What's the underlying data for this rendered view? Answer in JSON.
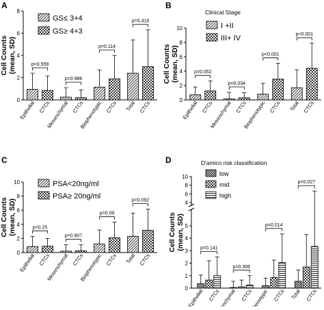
{
  "chart_data": [
    {
      "type": "bar",
      "panel": "A",
      "title": "",
      "xlabel": "",
      "ylabel": "Cell Counts\n(mean, SD)",
      "ylim": [
        0,
        8
      ],
      "yticks": [
        "0",
        "2",
        "4",
        "6",
        "8"
      ],
      "ybreak": false,
      "groups": [
        {
          "labels": [
            "Epithelial",
            "CTCs"
          ],
          "pvalue": "p=0.559"
        },
        {
          "labels": [
            "Mesenchymal",
            "CTCs"
          ],
          "pvalue": "p=0.986"
        },
        {
          "labels": [
            "Biophenotypic",
            "CTCs"
          ],
          "pvalue": "p=0.114"
        },
        {
          "labels": [
            "Total",
            "CTCs"
          ],
          "pvalue": "p=0.416"
        }
      ],
      "series": [
        {
          "name": "GS≤ 3+4",
          "pattern": "hatch",
          "values": [
            0.95,
            0.25,
            1.15,
            2.4
          ],
          "sd": [
            1.45,
            0.85,
            1.55,
            3.0
          ]
        },
        {
          "name": "GS≥ 4+3",
          "pattern": "check",
          "values": [
            0.85,
            0.2,
            1.9,
            3.0
          ],
          "sd": [
            1.3,
            0.7,
            2.1,
            3.3
          ]
        }
      ],
      "legend_title": "",
      "legend": "top-left"
    },
    {
      "type": "bar",
      "panel": "B",
      "title": "",
      "xlabel": "",
      "ylabel": "Cell Counts\n(mean, SD)",
      "ylim": [
        0,
        10
      ],
      "yticks": [
        "0",
        "2",
        "4",
        "6",
        "8",
        "10"
      ],
      "ybreak": false,
      "groups": [
        {
          "labels": [
            "Epithelial",
            "CTCs"
          ],
          "pvalue": "p=0.052"
        },
        {
          "labels": [
            "Mesenchymal",
            "CTCs"
          ],
          "pvalue": "p=0.034"
        },
        {
          "labels": [
            "Biophenotypic",
            "CTCs"
          ],
          "pvalue": "p<0.001"
        },
        {
          "labels": [
            "Total",
            "CTCs"
          ],
          "pvalue": "p<0.001"
        }
      ],
      "series": [
        {
          "name": "I +II",
          "pattern": "hatch",
          "values": [
            0.7,
            0.15,
            0.8,
            1.7
          ],
          "sd": [
            1.1,
            0.9,
            1.5,
            2.5
          ]
        },
        {
          "name": "III+ IV",
          "pattern": "check",
          "values": [
            1.25,
            0.3,
            2.9,
            4.4
          ],
          "sd": [
            1.4,
            0.7,
            2.2,
            3.5
          ]
        }
      ],
      "legend_title": "Clinical Stage",
      "legend": "top-left"
    },
    {
      "type": "bar",
      "panel": "C",
      "title": "",
      "xlabel": "",
      "ylabel": "Cell Counts\n(mean, SD)",
      "ylim": [
        0,
        10
      ],
      "yticks": [
        "0",
        "2",
        "4",
        "6",
        "8",
        "10"
      ],
      "ybreak": false,
      "groups": [
        {
          "labels": [
            "Epithelial",
            "CTCs"
          ],
          "pvalue": "p=0.25"
        },
        {
          "labels": [
            "Mesenchymal",
            "CTCs"
          ],
          "pvalue": "p=0.807"
        },
        {
          "labels": [
            "Biophenotypic",
            "CTCs"
          ],
          "pvalue": "p=0.09"
        },
        {
          "labels": [
            "Total",
            "CTCs"
          ],
          "pvalue": "p=0.092"
        }
      ],
      "series": [
        {
          "name": "PSA<20ng/ml",
          "pattern": "hatch",
          "values": [
            0.85,
            0.2,
            1.2,
            2.3
          ],
          "sd": [
            1.45,
            0.9,
            2.0,
            3.3
          ]
        },
        {
          "name": "PSA≥ 20ng/ml",
          "pattern": "check",
          "values": [
            0.9,
            0.25,
            2.1,
            3.15
          ],
          "sd": [
            1.1,
            0.85,
            2.2,
            3.0
          ]
        }
      ],
      "legend_title": "",
      "legend": "top-left"
    },
    {
      "type": "bar",
      "panel": "D",
      "title": "",
      "xlabel": "",
      "ylabel": "Cell Counts\n(mean, SD)",
      "yticks_lower": [
        "0",
        "1",
        "2",
        "3",
        "4",
        "5"
      ],
      "yticks_upper": [
        "4",
        "6",
        "8",
        "10"
      ],
      "ybreak": true,
      "groups": [
        {
          "labels": [
            "Epithelial",
            "CTCs"
          ],
          "pvalue": "p=0.141"
        },
        {
          "labels": [
            "Mesenchymal",
            "CTCs"
          ],
          "pvalue": "p=0.306"
        },
        {
          "labels": [
            "Biophenotypic",
            "CTCs"
          ],
          "pvalue": "p=0.014"
        },
        {
          "labels": [
            "Total",
            "CTCs"
          ],
          "pvalue": "p=0.027"
        }
      ],
      "series": [
        {
          "name": "low",
          "pattern": "dense",
          "values": [
            0.35,
            0.05,
            0.2,
            0.55
          ],
          "sd": [
            0.7,
            0.5,
            0.6,
            0.9
          ]
        },
        {
          "name": "mid",
          "pattern": "check",
          "values": [
            0.65,
            0.1,
            0.85,
            1.7
          ],
          "sd": [
            1.55,
            0.55,
            1.4,
            2.6
          ]
        },
        {
          "name": "high",
          "pattern": "hbars",
          "values": [
            1.0,
            0.25,
            2.05,
            3.35
          ],
          "sd": [
            1.5,
            0.75,
            2.3,
            3.3
          ]
        }
      ],
      "legend_title": "D'amico risk classification",
      "legend": "top-left"
    }
  ]
}
